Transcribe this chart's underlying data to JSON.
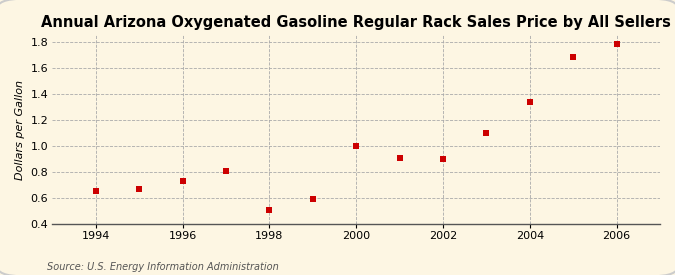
{
  "title": "Annual Arizona Oxygenated Gasoline Regular Rack Sales Price by All Sellers",
  "xlabel": "",
  "ylabel": "Dollars per Gallon",
  "source": "Source: U.S. Energy Information Administration",
  "x": [
    1994,
    1995,
    1996,
    1997,
    1998,
    1999,
    2000,
    2001,
    2002,
    2003,
    2004,
    2005,
    2006
  ],
  "y": [
    0.65,
    0.67,
    0.73,
    0.81,
    0.51,
    0.59,
    1.0,
    0.91,
    0.9,
    1.1,
    1.34,
    1.68,
    1.78
  ],
  "marker_color": "#cc0000",
  "marker": "s",
  "marker_size": 5,
  "background_color": "#fdf6e3",
  "grid_color": "#aaaaaa",
  "border_color": "#cccccc",
  "xlim": [
    1993.0,
    2007.0
  ],
  "ylim": [
    0.4,
    1.85
  ],
  "xticks": [
    1994,
    1996,
    1998,
    2000,
    2002,
    2004,
    2006
  ],
  "yticks": [
    0.4,
    0.6,
    0.8,
    1.0,
    1.2,
    1.4,
    1.6,
    1.8
  ],
  "title_fontsize": 10.5,
  "label_fontsize": 8,
  "tick_fontsize": 8,
  "source_fontsize": 7
}
